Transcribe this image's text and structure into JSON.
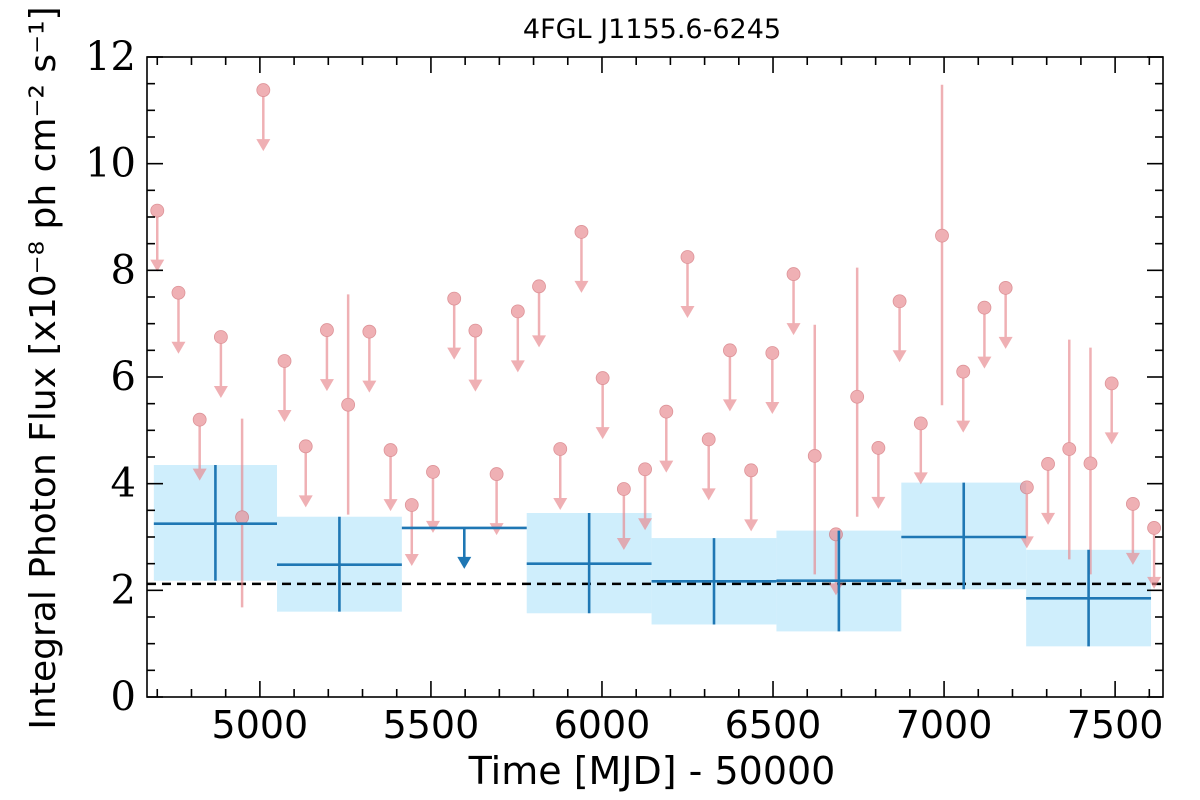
{
  "chart_data": {
    "type": "scatter",
    "title": "4FGL J1155.6-6245",
    "xlabel": "Time [MJD] - 50000",
    "ylabel": "Integral Photon Flux [x10⁻⁸ ph cm⁻² s⁻¹]",
    "xlim": [
      4670,
      7640
    ],
    "ylim": [
      0,
      12
    ],
    "xticks": [
      5000,
      5500,
      6000,
      6500,
      7000,
      7500
    ],
    "yticks": [
      0,
      2,
      4,
      6,
      8,
      10,
      12
    ],
    "reference_line": {
      "y": 2.12,
      "style": "dashed"
    },
    "colors": {
      "short_bins": "#e8878d",
      "long_bins": "#1f77b4",
      "long_bins_band": "#cfeefc",
      "reference_line": "#000000"
    },
    "long_bins": [
      {
        "x_start": 4690,
        "x_end": 5050,
        "y": 3.25,
        "y_low": 2.18,
        "y_high": 4.35,
        "upper_limit": false
      },
      {
        "x_start": 5050,
        "x_end": 5415,
        "y": 2.48,
        "y_low": 1.6,
        "y_high": 3.38,
        "upper_limit": false
      },
      {
        "x_start": 5415,
        "x_end": 5780,
        "y": 3.17,
        "upper_limit": true
      },
      {
        "x_start": 5780,
        "x_end": 6145,
        "y": 2.5,
        "y_low": 1.57,
        "y_high": 3.45,
        "upper_limit": false
      },
      {
        "x_start": 6145,
        "x_end": 6510,
        "y": 2.17,
        "y_low": 1.36,
        "y_high": 2.98,
        "upper_limit": false
      },
      {
        "x_start": 6510,
        "x_end": 6875,
        "y": 2.18,
        "y_low": 1.23,
        "y_high": 3.12,
        "upper_limit": false
      },
      {
        "x_start": 6875,
        "x_end": 7240,
        "y": 3.0,
        "y_low": 2.02,
        "y_high": 4.02,
        "upper_limit": false
      },
      {
        "x_start": 7240,
        "x_end": 7605,
        "y": 1.85,
        "y_low": 0.95,
        "y_high": 2.76,
        "upper_limit": false
      }
    ],
    "short_bins": [
      {
        "x": 4700,
        "y": 9.12,
        "upper_limit": true
      },
      {
        "x": 4762,
        "y": 7.58,
        "upper_limit": true
      },
      {
        "x": 4824,
        "y": 5.2,
        "upper_limit": true
      },
      {
        "x": 4886,
        "y": 6.75,
        "upper_limit": true
      },
      {
        "x": 4948,
        "y": 3.37,
        "y_low": 1.68,
        "y_high": 5.22,
        "upper_limit": false
      },
      {
        "x": 5010,
        "y": 11.38,
        "upper_limit": true
      },
      {
        "x": 5072,
        "y": 6.3,
        "upper_limit": true
      },
      {
        "x": 5134,
        "y": 4.7,
        "upper_limit": true
      },
      {
        "x": 5196,
        "y": 6.88,
        "upper_limit": true
      },
      {
        "x": 5258,
        "y": 5.48,
        "y_low": 3.42,
        "y_high": 7.55,
        "upper_limit": false
      },
      {
        "x": 5320,
        "y": 6.85,
        "upper_limit": true
      },
      {
        "x": 5382,
        "y": 4.63,
        "upper_limit": true
      },
      {
        "x": 5444,
        "y": 3.6,
        "upper_limit": true
      },
      {
        "x": 5506,
        "y": 4.22,
        "upper_limit": true
      },
      {
        "x": 5568,
        "y": 7.47,
        "upper_limit": true
      },
      {
        "x": 5630,
        "y": 6.87,
        "upper_limit": true
      },
      {
        "x": 5692,
        "y": 4.18,
        "upper_limit": true
      },
      {
        "x": 5754,
        "y": 7.23,
        "upper_limit": true
      },
      {
        "x": 5816,
        "y": 7.7,
        "upper_limit": true
      },
      {
        "x": 5878,
        "y": 4.65,
        "upper_limit": true
      },
      {
        "x": 5940,
        "y": 8.72,
        "upper_limit": true
      },
      {
        "x": 6002,
        "y": 5.98,
        "upper_limit": true
      },
      {
        "x": 6064,
        "y": 3.9,
        "upper_limit": true
      },
      {
        "x": 6126,
        "y": 4.27,
        "upper_limit": true
      },
      {
        "x": 6188,
        "y": 5.35,
        "upper_limit": true
      },
      {
        "x": 6250,
        "y": 8.25,
        "upper_limit": true
      },
      {
        "x": 6312,
        "y": 4.83,
        "upper_limit": true
      },
      {
        "x": 6374,
        "y": 6.5,
        "upper_limit": true
      },
      {
        "x": 6436,
        "y": 4.25,
        "upper_limit": true
      },
      {
        "x": 6498,
        "y": 6.45,
        "upper_limit": true
      },
      {
        "x": 6560,
        "y": 7.93,
        "upper_limit": true
      },
      {
        "x": 6622,
        "y": 4.52,
        "y_low": 2.3,
        "y_high": 6.98,
        "upper_limit": false
      },
      {
        "x": 6684,
        "y": 3.05,
        "upper_limit": true
      },
      {
        "x": 6746,
        "y": 5.63,
        "y_low": 3.38,
        "y_high": 8.05,
        "upper_limit": false
      },
      {
        "x": 6808,
        "y": 4.67,
        "upper_limit": true
      },
      {
        "x": 6870,
        "y": 7.42,
        "upper_limit": true
      },
      {
        "x": 6932,
        "y": 5.13,
        "upper_limit": true
      },
      {
        "x": 6994,
        "y": 8.65,
        "y_low": 5.47,
        "y_high": 11.48,
        "upper_limit": false
      },
      {
        "x": 7056,
        "y": 6.1,
        "upper_limit": true
      },
      {
        "x": 7118,
        "y": 7.3,
        "upper_limit": true
      },
      {
        "x": 7180,
        "y": 7.67,
        "upper_limit": true
      },
      {
        "x": 7242,
        "y": 3.93,
        "upper_limit": true
      },
      {
        "x": 7304,
        "y": 4.37,
        "upper_limit": true
      },
      {
        "x": 7366,
        "y": 4.65,
        "y_low": 2.58,
        "y_high": 6.7,
        "upper_limit": false
      },
      {
        "x": 7428,
        "y": 4.38,
        "y_low": 2.3,
        "y_high": 6.55,
        "upper_limit": false
      },
      {
        "x": 7490,
        "y": 5.88,
        "upper_limit": true
      },
      {
        "x": 7552,
        "y": 3.62,
        "upper_limit": true
      },
      {
        "x": 7614,
        "y": 3.17,
        "upper_limit": true
      }
    ]
  }
}
